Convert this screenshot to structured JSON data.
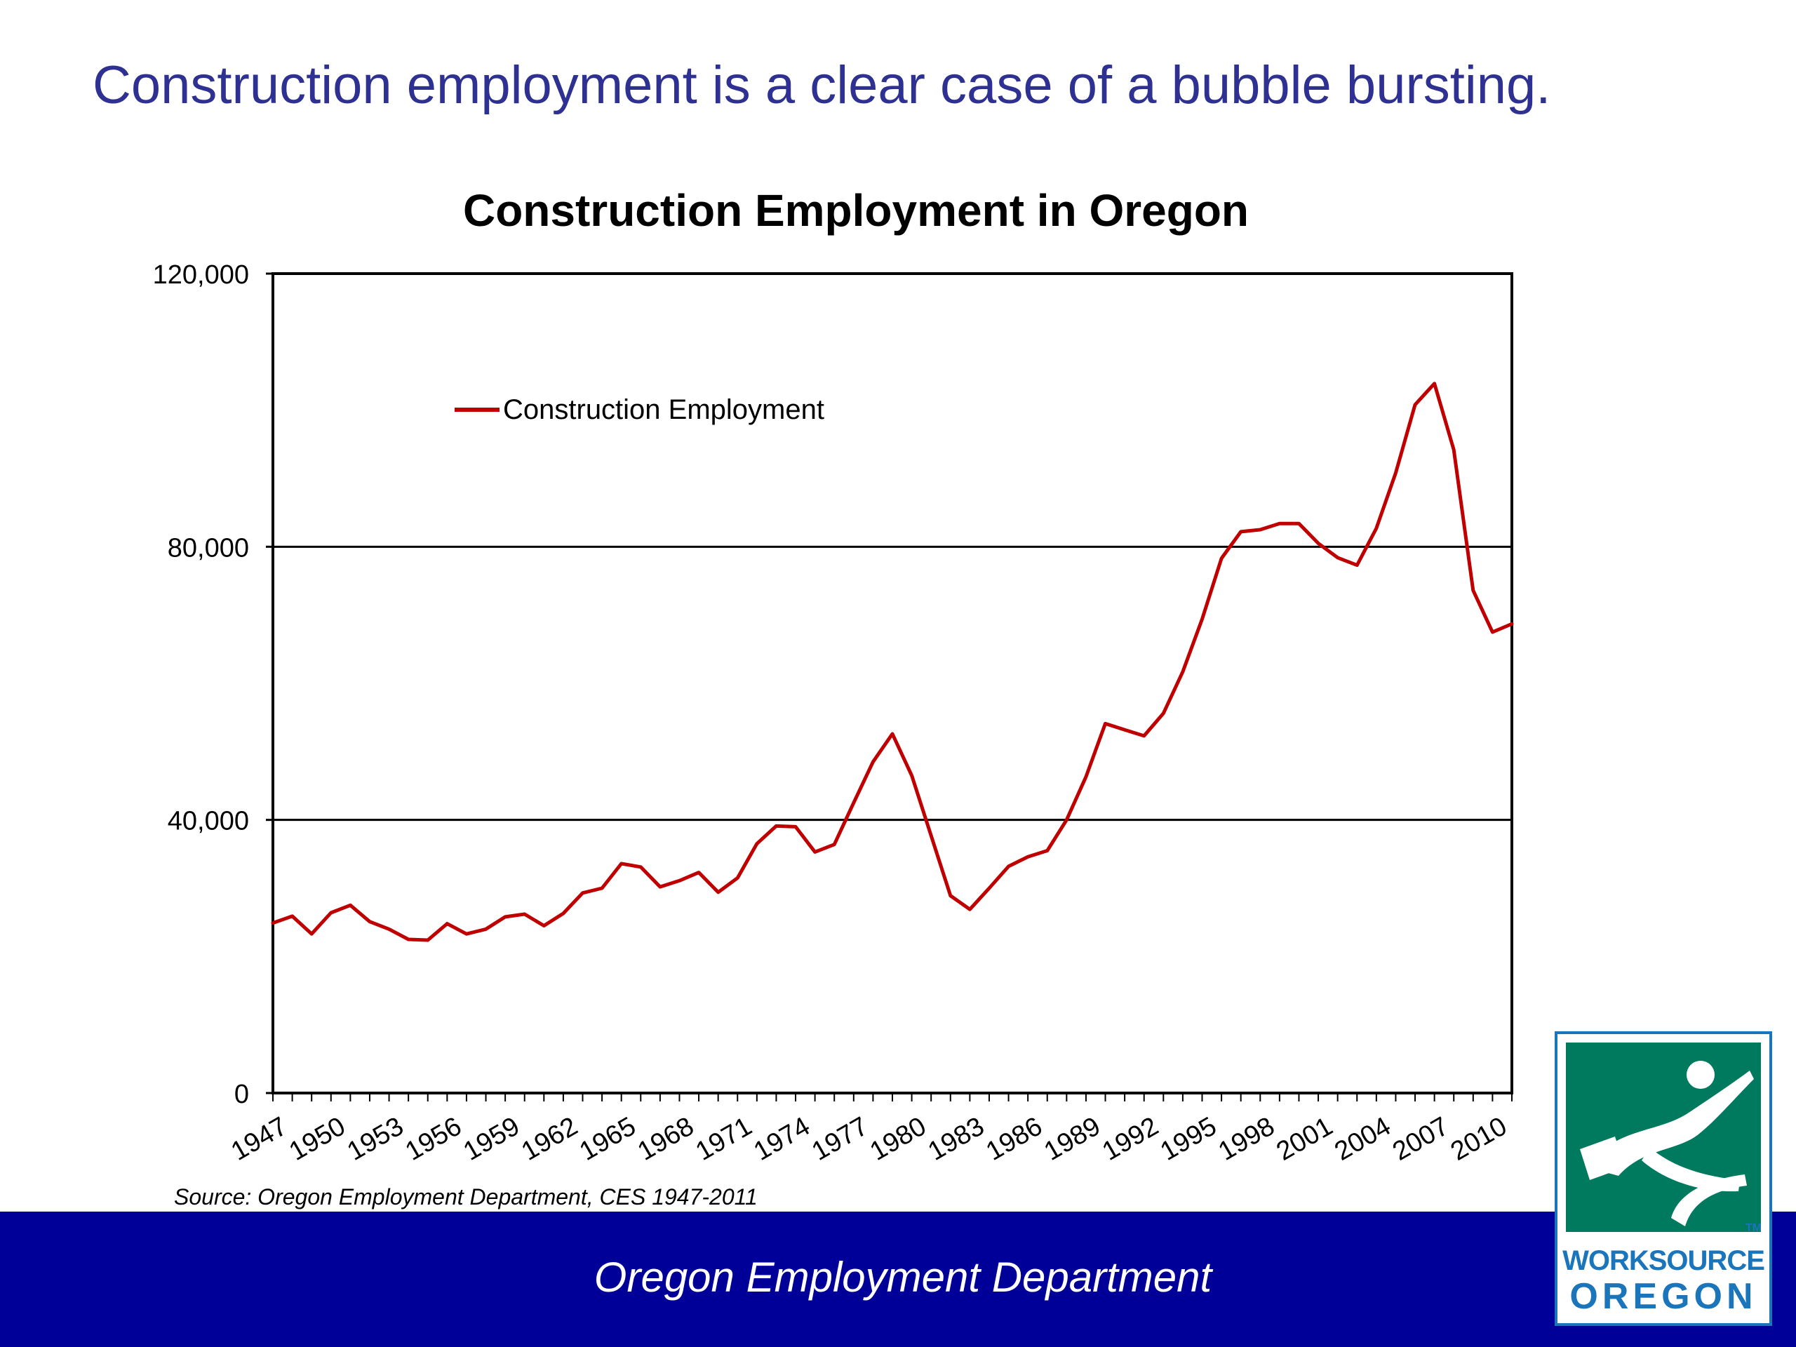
{
  "slide": {
    "title": "Construction employment is a clear case of a bubble bursting.",
    "source_note": "Source: Oregon Employment Department, CES 1947-2011",
    "footer": "Oregon Employment Department"
  },
  "logo": {
    "line1": "WORKSOURCE",
    "line2": "OREGON",
    "tm": "TM",
    "colors": {
      "green": "#007a5e",
      "blue": "#1b75bb"
    }
  },
  "chart_data": {
    "type": "line",
    "title": "Construction Employment in Oregon",
    "xlabel": "",
    "ylabel": "",
    "x": [
      1947,
      1948,
      1949,
      1950,
      1951,
      1952,
      1953,
      1954,
      1955,
      1956,
      1957,
      1958,
      1959,
      1960,
      1961,
      1962,
      1963,
      1964,
      1965,
      1966,
      1967,
      1968,
      1969,
      1970,
      1971,
      1972,
      1973,
      1974,
      1975,
      1976,
      1977,
      1978,
      1979,
      1980,
      1981,
      1982,
      1983,
      1984,
      1985,
      1986,
      1987,
      1988,
      1989,
      1990,
      1991,
      1992,
      1993,
      1994,
      1995,
      1996,
      1997,
      1998,
      1999,
      2000,
      2001,
      2002,
      2003,
      2004,
      2005,
      2006,
      2007,
      2008,
      2009,
      2010,
      2011
    ],
    "series": [
      {
        "name": "Construction Employment",
        "color": "#c00000",
        "values": [
          24900,
          25900,
          23300,
          26400,
          27500,
          25100,
          24000,
          22500,
          22400,
          24800,
          23300,
          24000,
          25800,
          26200,
          24500,
          26300,
          29300,
          30000,
          33600,
          33100,
          30200,
          31100,
          32300,
          29400,
          31500,
          36500,
          39100,
          39000,
          35300,
          36400,
          42500,
          48500,
          52600,
          46500,
          37700,
          28900,
          26900,
          30000,
          33200,
          34600,
          35500,
          40000,
          46300,
          54100,
          53200,
          52300,
          55600,
          61700,
          69400,
          78300,
          82200,
          82500,
          83400,
          83400,
          80500,
          78400,
          77300,
          82700,
          90800,
          100800,
          103900,
          94200,
          73600,
          67500,
          68700
        ]
      }
    ],
    "xticks": [
      "1947",
      "1950",
      "1953",
      "1956",
      "1959",
      "1962",
      "1965",
      "1968",
      "1971",
      "1974",
      "1977",
      "1980",
      "1983",
      "1986",
      "1989",
      "1992",
      "1995",
      "1998",
      "2001",
      "2004",
      "2007",
      "2010"
    ],
    "yticks": [
      "0",
      "40,000",
      "80,000",
      "120,000"
    ],
    "ylim": [
      0,
      120000
    ],
    "xlim": [
      1947,
      2011
    ],
    "gridlines": "horizontal",
    "legend": "top-left inside plot"
  }
}
